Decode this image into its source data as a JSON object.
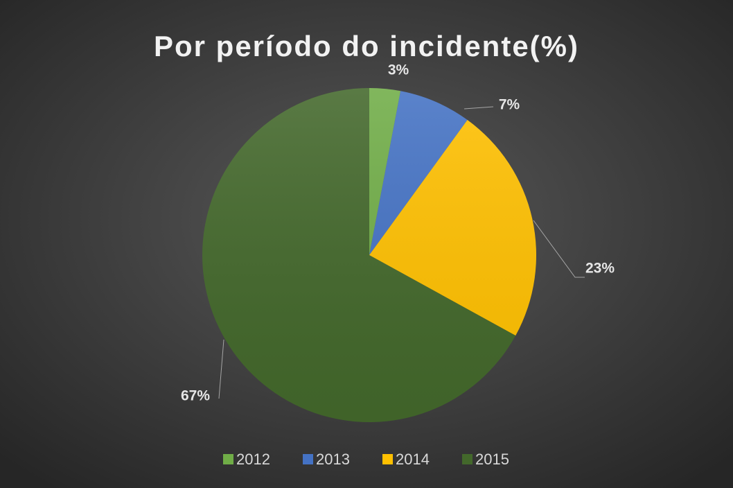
{
  "chart_data": {
    "type": "pie",
    "title": "Por período do incidente(%)",
    "categories": [
      "2012",
      "2013",
      "2014",
      "2015"
    ],
    "values": [
      3,
      7,
      23,
      67
    ],
    "value_labels": [
      "3%",
      "7%",
      "23%",
      "67%"
    ],
    "colors": [
      "#70ad47",
      "#4472c4",
      "#ffc000",
      "#43682b"
    ],
    "legend": "bottom"
  }
}
